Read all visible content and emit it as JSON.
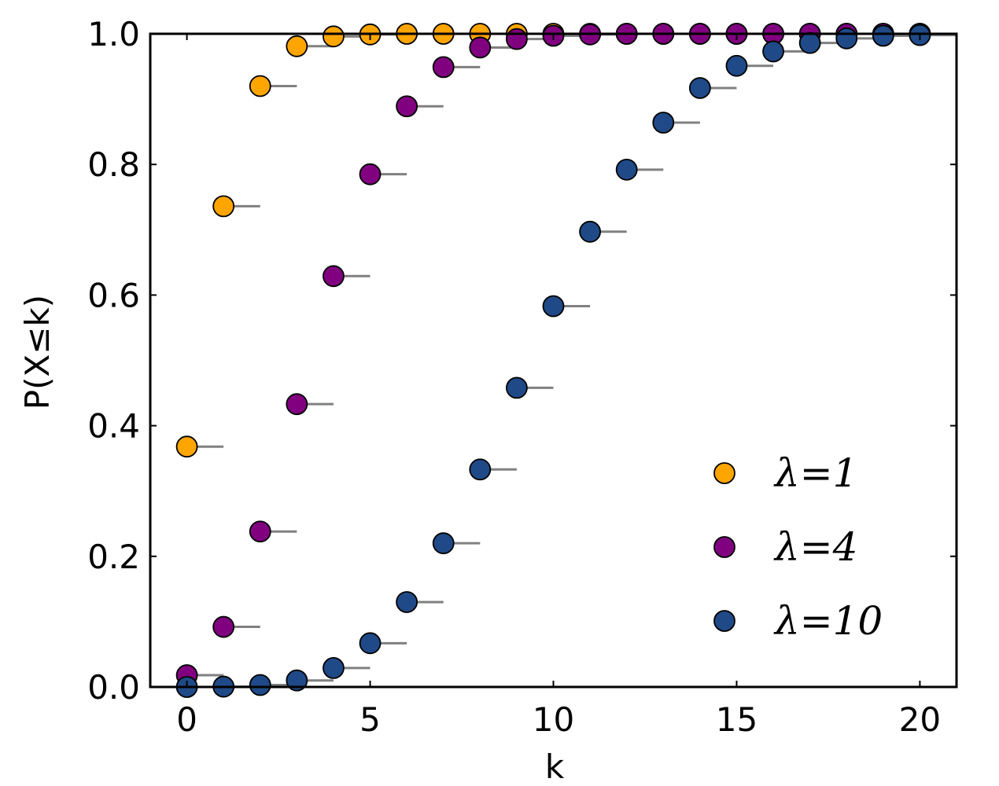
{
  "chart_data": {
    "type": "scatter",
    "xlabel": "k",
    "ylabel": "P(X≤k)",
    "xlim": [
      -1,
      21
    ],
    "ylim": [
      0.0,
      1.0
    ],
    "xticks": [
      0,
      5,
      10,
      15,
      20
    ],
    "xtick_labels": [
      "0",
      "5",
      "10",
      "15",
      "20"
    ],
    "yticks": [
      0.0,
      0.2,
      0.4,
      0.6,
      0.8,
      1.0
    ],
    "ytick_labels": [
      "0.0",
      "0.2",
      "0.4",
      "0.6",
      "0.8",
      "1.0"
    ],
    "grid": false,
    "legend_position": "lower-right",
    "x": [
      0,
      1,
      2,
      3,
      4,
      5,
      6,
      7,
      8,
      9,
      10,
      11,
      12,
      13,
      14,
      15,
      16,
      17,
      18,
      19,
      20
    ],
    "series": [
      {
        "name": "λ=1",
        "color": "#FFA500",
        "values": [
          0.368,
          0.736,
          0.92,
          0.981,
          0.996,
          0.999,
          1.0,
          1.0,
          1.0,
          1.0,
          1.0,
          1.0,
          1.0,
          1.0,
          1.0,
          1.0,
          1.0,
          1.0,
          1.0,
          1.0,
          1.0
        ]
      },
      {
        "name": "λ=4",
        "color": "#800080",
        "values": [
          0.018,
          0.092,
          0.238,
          0.433,
          0.629,
          0.785,
          0.889,
          0.949,
          0.979,
          0.992,
          0.997,
          0.999,
          1.0,
          1.0,
          1.0,
          1.0,
          1.0,
          1.0,
          1.0,
          1.0,
          1.0
        ]
      },
      {
        "name": "λ=10",
        "color": "#1F4A87",
        "values": [
          0.0,
          0.0005,
          0.003,
          0.01,
          0.029,
          0.067,
          0.13,
          0.22,
          0.333,
          0.458,
          0.583,
          0.697,
          0.792,
          0.864,
          0.917,
          0.951,
          0.973,
          0.986,
          0.993,
          0.997,
          0.998
        ]
      }
    ]
  }
}
